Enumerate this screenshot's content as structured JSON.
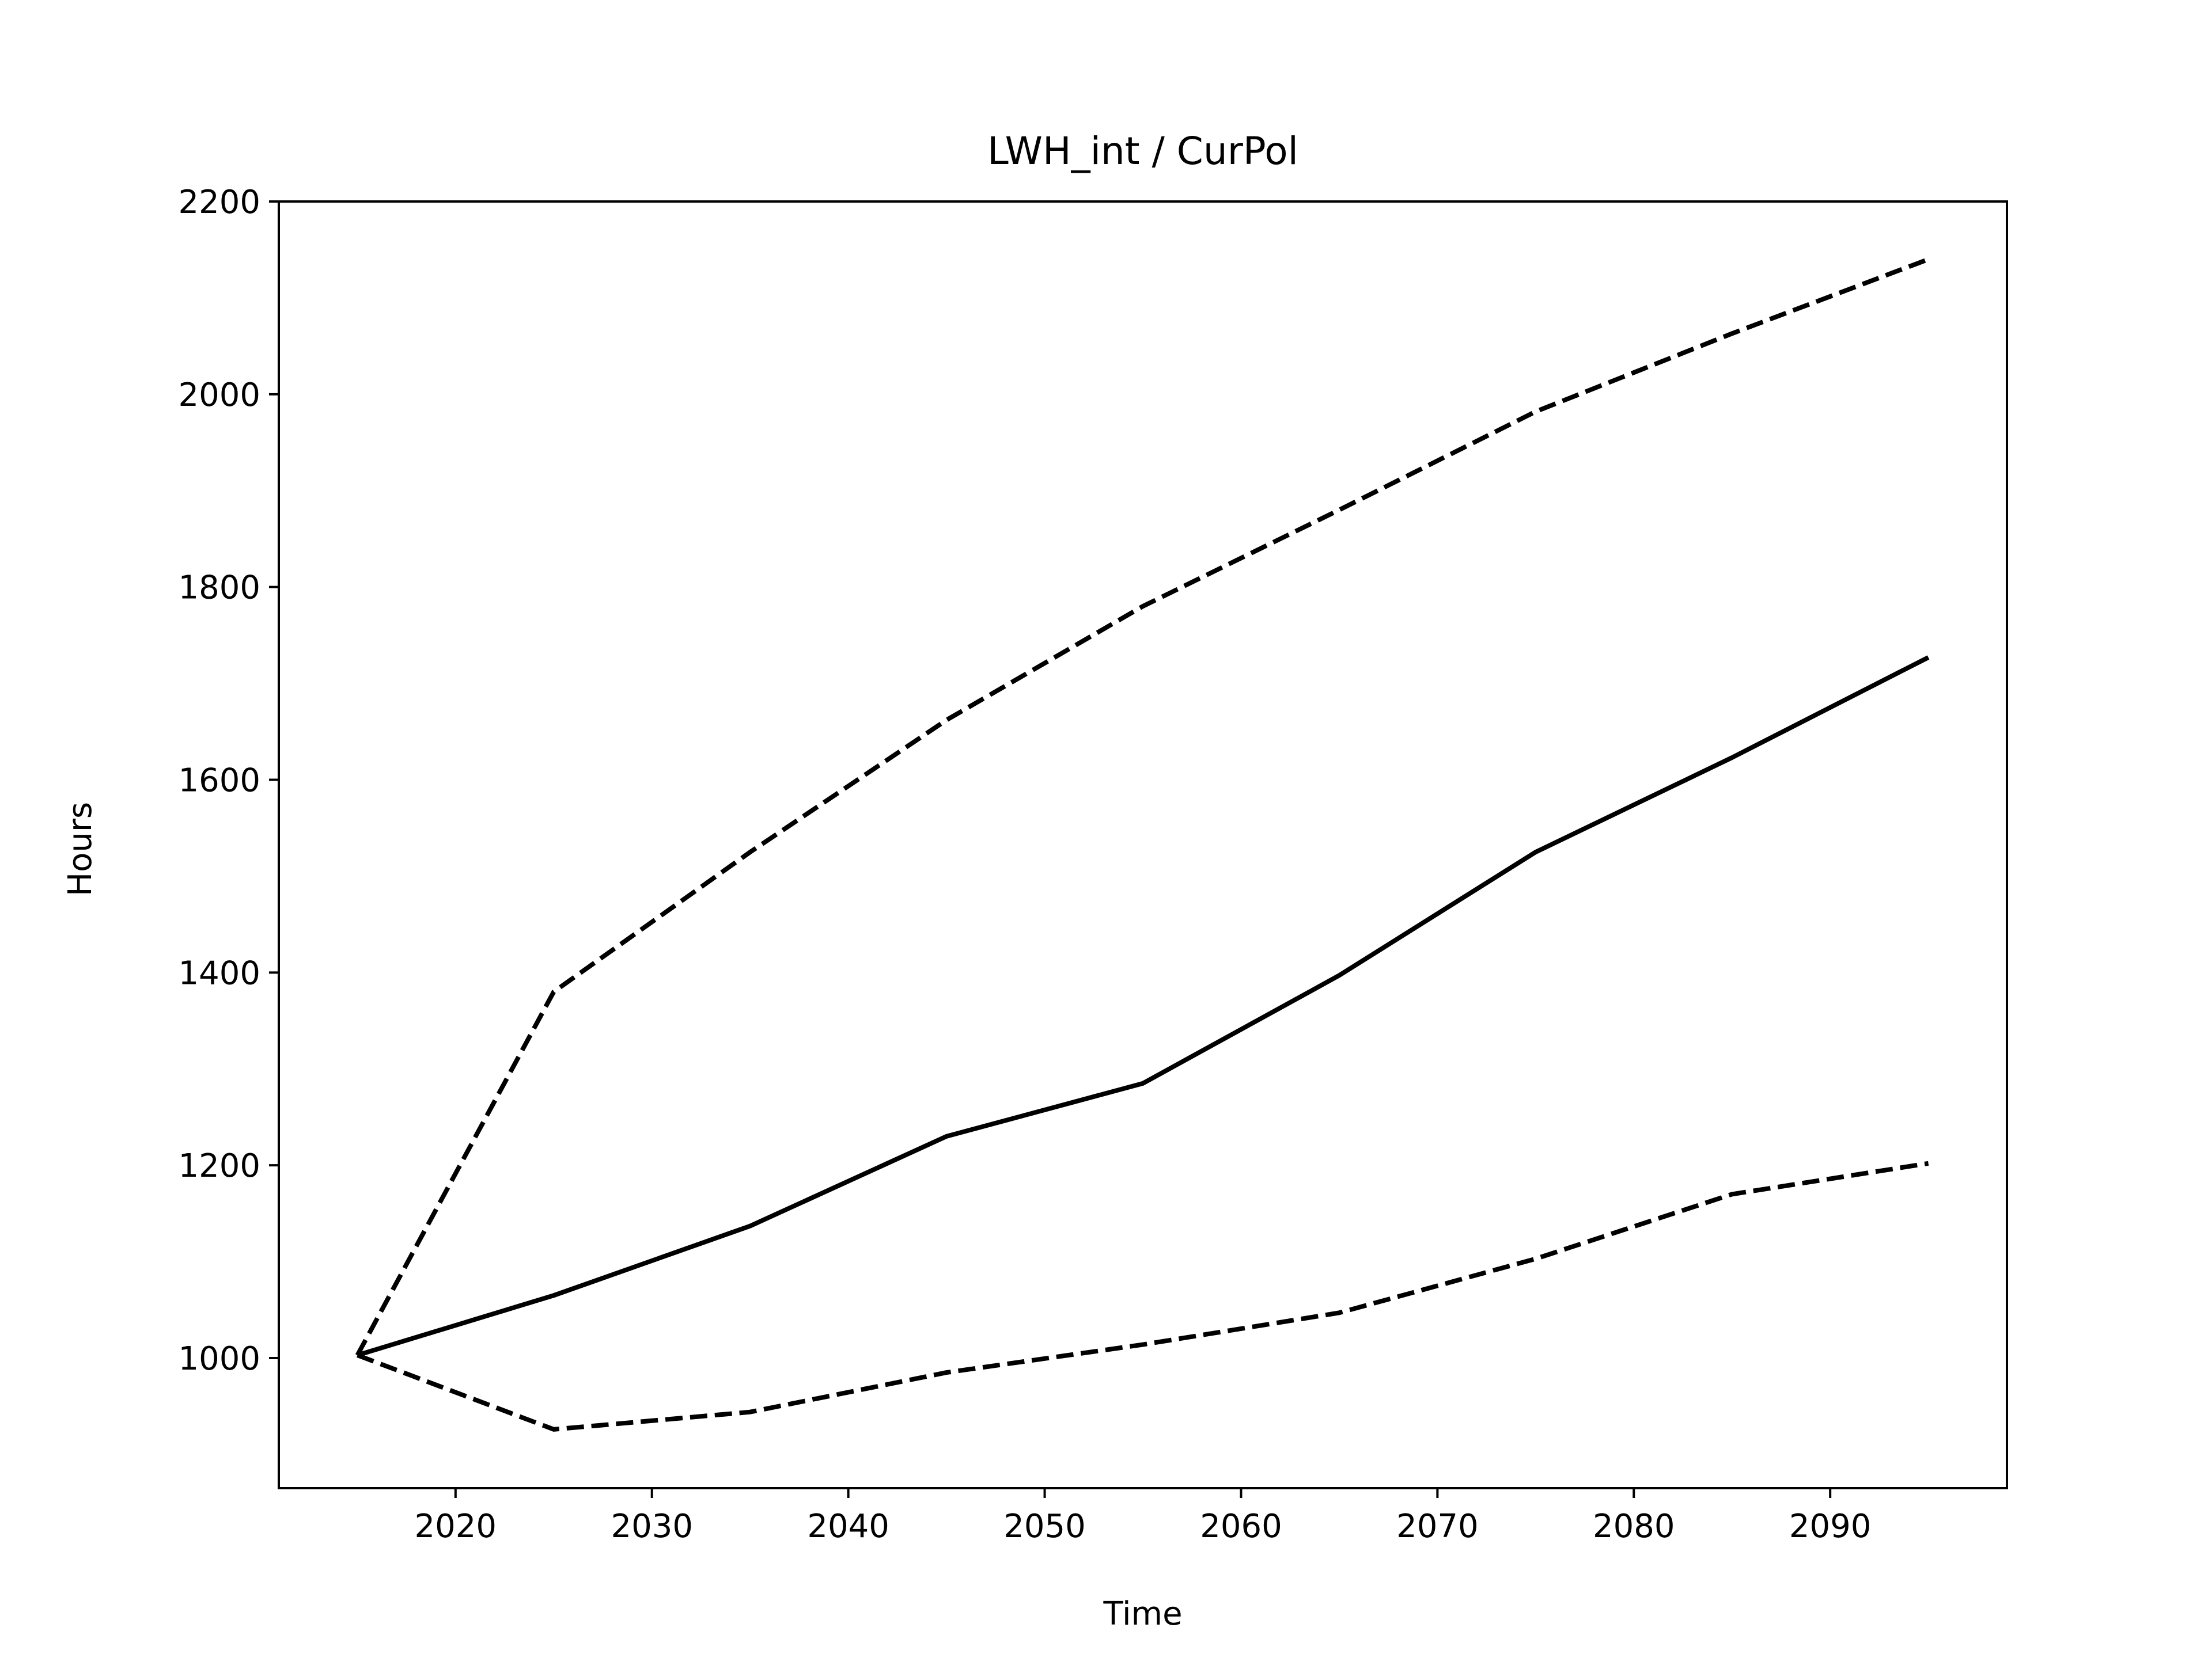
{
  "chart_data": {
    "type": "line",
    "title": "LWH_int / CurPol",
    "xlabel": "Time",
    "ylabel": "Hours",
    "xlim": [
      2011,
      2099
    ],
    "ylim": [
      865,
      2200
    ],
    "xticks": [
      2020,
      2030,
      2040,
      2050,
      2060,
      2070,
      2080,
      2090
    ],
    "yticks": [
      1000,
      1200,
      1400,
      1600,
      1800,
      2000,
      2200
    ],
    "grid": false,
    "legend": "none",
    "colors": {
      "line": "#000000",
      "frame": "#000000",
      "background": "#ffffff"
    },
    "series": [
      {
        "style": "dashed",
        "x": [
          2015,
          2025,
          2035,
          2045,
          2055,
          2065,
          2075,
          2085,
          2095
        ],
        "y": [
          1003,
          1380,
          1525,
          1662,
          1780,
          1880,
          1982,
          2063,
          2140
        ]
      },
      {
        "style": "solid",
        "x": [
          2015,
          2025,
          2035,
          2045,
          2055,
          2065,
          2075,
          2085,
          2095
        ],
        "y": [
          1003,
          1065,
          1137,
          1230,
          1285,
          1397,
          1525,
          1623,
          1727
        ]
      },
      {
        "style": "dashed",
        "x": [
          2015,
          2025,
          2035,
          2045,
          2055,
          2065,
          2075,
          2085,
          2095
        ],
        "y": [
          1003,
          926,
          944,
          985,
          1014,
          1047,
          1103,
          1170,
          1202
        ]
      }
    ]
  }
}
